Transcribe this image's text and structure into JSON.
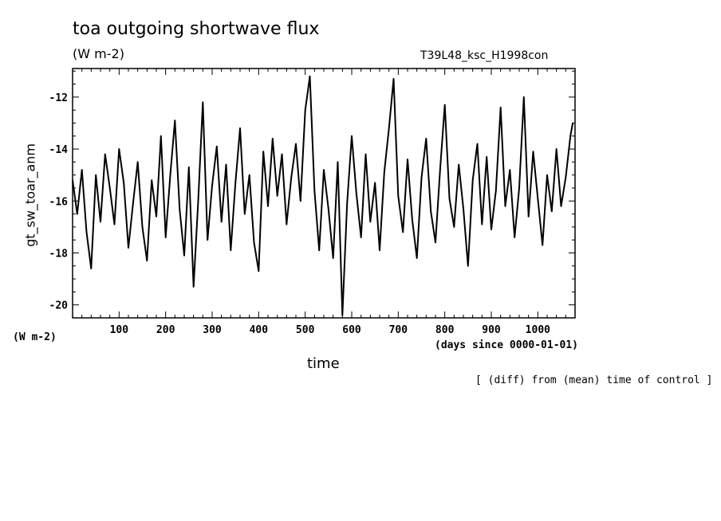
{
  "chart_data": {
    "type": "line",
    "title": "toa outgoing shortwave flux",
    "subtitle": "(W m-2)",
    "run_label": "T39L48_ksc_H1998con",
    "xlabel": "time",
    "x_units": "(days since 0000-01-01)",
    "ylabel": "gt_sw_toar_anm",
    "y_units": "(W m-2)",
    "note": "[ (diff) from (mean) time of control ]",
    "xlim": [
      0,
      1080
    ],
    "ylim": [
      -20.5,
      -10.9
    ],
    "x_ticks": [
      100,
      200,
      300,
      400,
      500,
      600,
      700,
      800,
      900,
      1000
    ],
    "x_tick_labels": [
      "100",
      "200",
      "300",
      "400",
      "500",
      "600",
      "700",
      "800",
      "900",
      "1000"
    ],
    "y_ticks": [
      -20,
      -18,
      -16,
      -14,
      -12
    ],
    "y_tick_labels": [
      "-20",
      "-18",
      "-16",
      "-14",
      "-12"
    ],
    "grid": false,
    "series": [
      {
        "color": "#000000",
        "x": [
          0,
          10,
          20,
          30,
          40,
          50,
          60,
          70,
          80,
          90,
          100,
          110,
          120,
          130,
          140,
          150,
          160,
          170,
          180,
          190,
          200,
          210,
          220,
          230,
          240,
          250,
          260,
          270,
          280,
          290,
          300,
          310,
          320,
          330,
          340,
          350,
          360,
          370,
          380,
          390,
          400,
          410,
          420,
          430,
          440,
          450,
          460,
          470,
          480,
          490,
          500,
          510,
          520,
          530,
          540,
          550,
          560,
          570,
          580,
          590,
          600,
          610,
          620,
          630,
          640,
          650,
          660,
          670,
          680,
          690,
          700,
          710,
          720,
          730,
          740,
          750,
          760,
          770,
          780,
          790,
          800,
          810,
          820,
          830,
          840,
          850,
          860,
          870,
          880,
          890,
          900,
          910,
          920,
          930,
          940,
          950,
          960,
          970,
          980,
          990,
          1000,
          1010,
          1020,
          1030,
          1040,
          1050,
          1060,
          1070,
          1075
        ],
        "y": [
          -15.2,
          -16.5,
          -14.8,
          -17.2,
          -18.6,
          -15.0,
          -16.8,
          -14.2,
          -15.5,
          -16.9,
          -14.0,
          -15.3,
          -17.8,
          -16.1,
          -14.5,
          -17.0,
          -18.3,
          -15.2,
          -16.6,
          -13.5,
          -17.4,
          -15.0,
          -12.9,
          -16.3,
          -18.1,
          -14.7,
          -19.3,
          -16.0,
          -12.2,
          -17.5,
          -15.4,
          -13.9,
          -16.8,
          -14.6,
          -17.9,
          -15.3,
          -13.2,
          -16.5,
          -15.0,
          -17.6,
          -18.7,
          -14.1,
          -16.2,
          -13.6,
          -15.8,
          -14.2,
          -16.9,
          -15.1,
          -13.8,
          -16.0,
          -12.5,
          -11.2,
          -15.6,
          -17.9,
          -14.8,
          -16.3,
          -18.2,
          -14.5,
          -20.4,
          -16.1,
          -13.5,
          -15.7,
          -17.4,
          -14.2,
          -16.8,
          -15.3,
          -17.9,
          -14.9,
          -13.2,
          -11.3,
          -15.8,
          -17.2,
          -14.4,
          -16.7,
          -18.2,
          -15.1,
          -13.6,
          -16.4,
          -17.6,
          -14.8,
          -12.3,
          -15.9,
          -17.0,
          -14.6,
          -16.3,
          -18.5,
          -15.2,
          -13.8,
          -16.9,
          -14.3,
          -17.1,
          -15.6,
          -12.4,
          -16.2,
          -14.8,
          -17.4,
          -15.5,
          -12.0,
          -16.6,
          -14.1,
          -15.9,
          -17.7,
          -15.0,
          -16.4,
          -14.0,
          -16.2,
          -15.1,
          -13.5,
          -13.0
        ]
      }
    ]
  }
}
